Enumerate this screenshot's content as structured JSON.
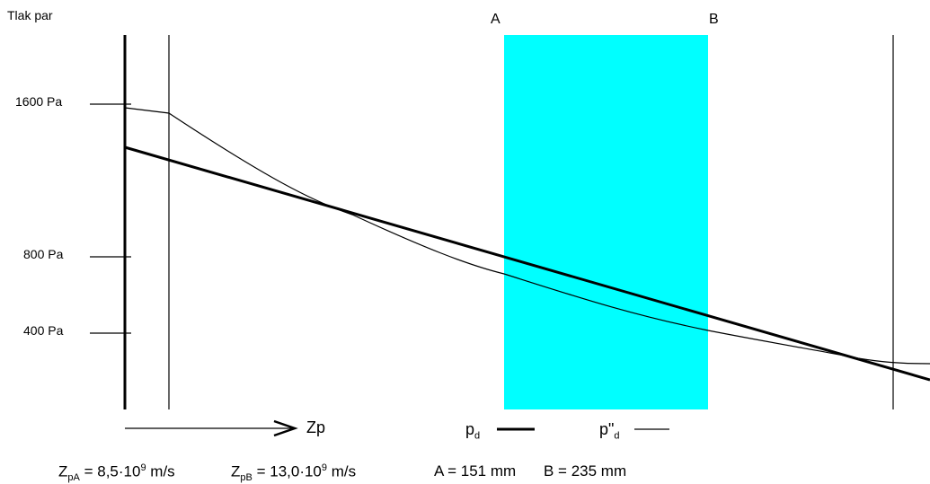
{
  "y_axis_title": "Tlak par",
  "tick_labels": [
    "1600 Pa",
    "800 Pa",
    "400 Pa"
  ],
  "layer_labels": {
    "left": "A",
    "right": "B"
  },
  "layer_color": "#00ffff",
  "x_direction_label": "Zp",
  "legend": {
    "pd_base": "p",
    "pd_sub": "d",
    "pdd_base": "p\"",
    "pdd_sub": "d"
  },
  "formulas": {
    "zpa": {
      "base": "Z",
      "sub": "pA",
      "pre": " = 8,5·10",
      "sup": "9",
      "post": " m/s"
    },
    "zpb": {
      "base": "Z",
      "sub": "pB",
      "pre": " = 13,0·10",
      "sup": "9",
      "post": " m/s"
    },
    "a": "A = 151 mm",
    "b": "B = 235 mm"
  }
}
